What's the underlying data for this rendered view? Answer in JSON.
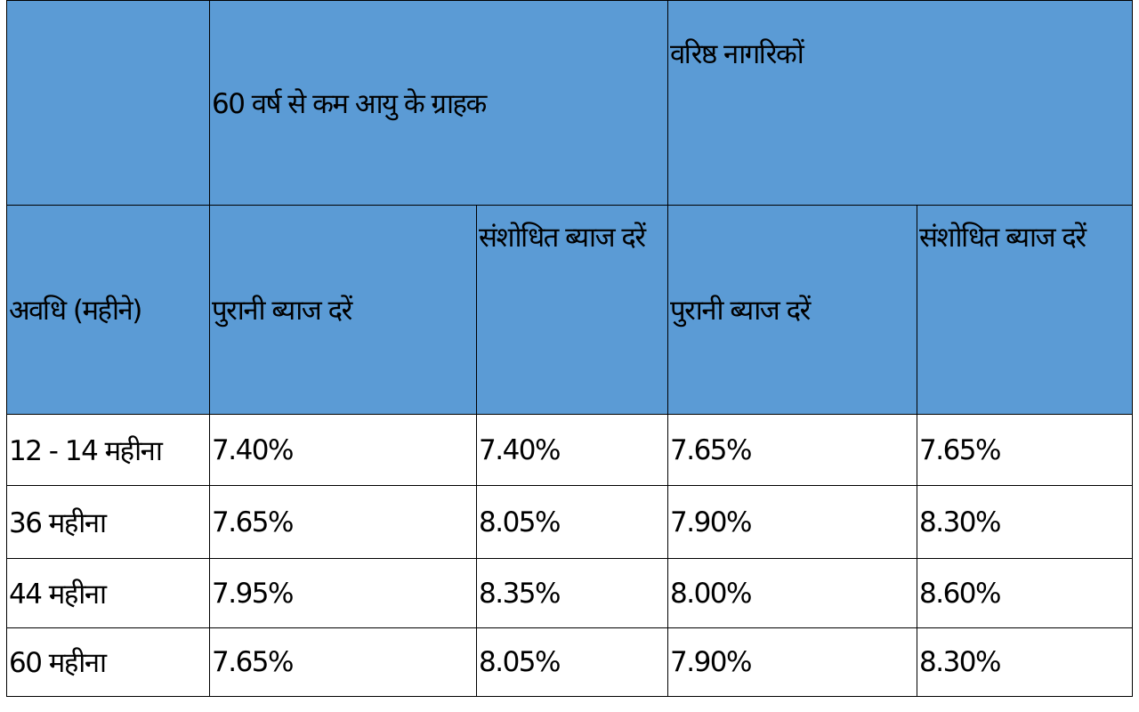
{
  "table": {
    "group_headers": [
      "60 वर्ष से कम आयु के ग्राहक",
      "वरिष्ठ नागरिकों"
    ],
    "column_headers": [
      "अवधि (महीने)",
      "पुरानी ब्याज दरें",
      "संशोधित ब्याज दरें",
      "पुरानी ब्याज दरें",
      "संशोधित ब्याज दरें"
    ],
    "rows": [
      [
        "12 - 14 महीना",
        "7.40%",
        "7.40%",
        "7.65%",
        "7.65%"
      ],
      [
        "36 महीना",
        "7.65%",
        "8.05%",
        "7.90%",
        "8.30%"
      ],
      [
        "44 महीना",
        "7.95%",
        "8.35%",
        "8.00%",
        "8.60%"
      ],
      [
        "60 महीना",
        "7.65%",
        "8.05%",
        "7.90%",
        "8.30%"
      ]
    ]
  }
}
